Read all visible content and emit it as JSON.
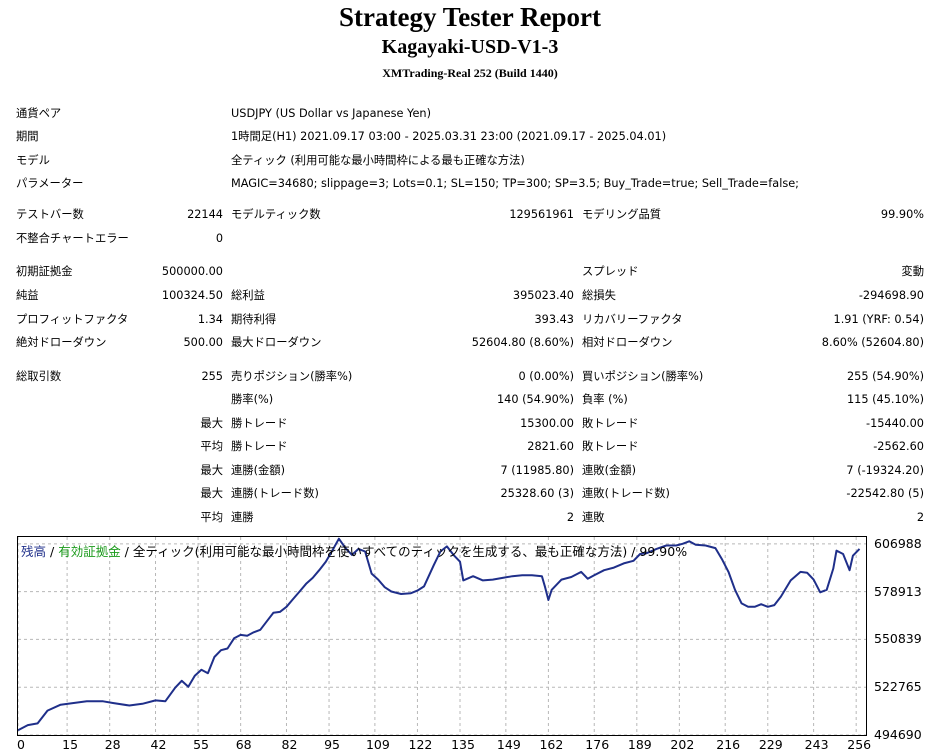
{
  "header": {
    "title": "Strategy Tester Report",
    "ea": "Kagayaki-USD-V1-3",
    "server": "XMTrading-Real 252 (Build 1440)"
  },
  "info": [
    {
      "label": "通貨ペア",
      "value": "USDJPY (US Dollar vs Japanese Yen)"
    },
    {
      "label": "期間",
      "value": "1時間足(H1) 2021.09.17 03:00 - 2025.03.31 23:00 (2021.09.17 - 2025.04.01)"
    },
    {
      "label": "モデル",
      "value": "全ティック (利用可能な最小時間枠による最も正確な方法)"
    },
    {
      "label": "パラメーター",
      "value": "MAGIC=34680; slippage=3; Lots=0.1; SL=150; TP=300; SP=3.5; Buy_Trade=true; Sell_Trade=false;"
    }
  ],
  "stats": {
    "bars_label": "テストバー数",
    "bars": "22144",
    "ticks_label": "モデルティック数",
    "ticks": "129561961",
    "quality_label": "モデリング品質",
    "quality": "99.90%",
    "mismatch_label": "不整合チャートエラー",
    "mismatch": "0",
    "deposit_label": "初期証拠金",
    "deposit": "500000.00",
    "spread_label": "スプレッド",
    "spread": "変動",
    "net_label": "純益",
    "net": "100324.50",
    "gross_profit_label": "総利益",
    "gross_profit": "395023.40",
    "gross_loss_label": "総損失",
    "gross_loss": "-294698.90",
    "pf_label": "プロフィットファクタ",
    "pf": "1.34",
    "expected_label": "期待利得",
    "expected": "393.43",
    "recovery_label": "リカバリーファクタ",
    "recovery": "1.91 (YRF: 0.54)",
    "abs_dd_label": "絶対ドローダウン",
    "abs_dd": "500.00",
    "max_dd_label": "最大ドローダウン",
    "max_dd": "52604.80 (8.60%)",
    "rel_dd_label": "相対ドローダウン",
    "rel_dd": "8.60% (52604.80)",
    "trades_label": "総取引数",
    "trades": "255",
    "short_label": "売りポジション(勝率%)",
    "short": "0 (0.00%)",
    "long_label": "買いポジション(勝率%)",
    "long": "255 (54.90%)",
    "win_pct_label": "勝率(%)",
    "win_pct": "140 (54.90%)",
    "loss_pct_label": "負率 (%)",
    "loss_pct": "115 (45.10%)",
    "max_word": "最大",
    "avg_word": "平均",
    "largest_win_label": "勝トレード",
    "largest_win": "15300.00",
    "largest_loss_label": "敗トレード",
    "largest_loss": "-15440.00",
    "avg_win_label": "勝トレード",
    "avg_win": "2821.60",
    "avg_loss_label": "敗トレード",
    "avg_loss": "-2562.60",
    "max_consec_win_label": "連勝(金額)",
    "max_consec_win": "7 (11985.80)",
    "max_consec_loss_label": "連敗(金額)",
    "max_consec_loss": "7 (-19324.20)",
    "max_consec_profit_label": "連勝(トレード数)",
    "max_consec_profit": "25328.60 (3)",
    "max_consec_lossamt_label": "連敗(トレード数)",
    "max_consec_lossamt": "-22542.80 (5)",
    "avg_consec_win_label": "連勝",
    "avg_consec_win": "2",
    "avg_consec_loss_label": "連敗",
    "avg_consec_loss": "2"
  },
  "legend": {
    "balance": "残高",
    "sep1": " / ",
    "equity": "有効証拠金",
    "sep2": " / ",
    "rest": "全ティック(利用可能な最小時間枠を使いすべてのティックを生成する、最も正確な方法) / 99.90%"
  },
  "colors": {
    "balance": "#1f2f8a",
    "equity": "#1b9a1b",
    "grid": "#b8b8b8"
  },
  "chart_data": {
    "type": "line",
    "series": [
      {
        "name": "残高",
        "values": [
          [
            0,
            497500
          ],
          [
            3,
            500500
          ],
          [
            6,
            501500
          ],
          [
            9,
            509000
          ],
          [
            13,
            512500
          ],
          [
            17,
            513500
          ],
          [
            21,
            514500
          ],
          [
            26,
            514500
          ],
          [
            29,
            513500
          ],
          [
            34,
            512000
          ],
          [
            38,
            513000
          ],
          [
            42,
            515000
          ],
          [
            45,
            514500
          ],
          [
            48,
            522500
          ],
          [
            50,
            526500
          ],
          [
            52,
            523000
          ],
          [
            54,
            529500
          ],
          [
            56,
            533000
          ],
          [
            58,
            531000
          ],
          [
            60,
            540500
          ],
          [
            62,
            544500
          ],
          [
            64,
            545500
          ],
          [
            66,
            551500
          ],
          [
            68,
            553500
          ],
          [
            70,
            553000
          ],
          [
            72,
            555000
          ],
          [
            74,
            556500
          ],
          [
            76,
            561500
          ],
          [
            78,
            566500
          ],
          [
            80,
            567000
          ],
          [
            82,
            570000
          ],
          [
            84,
            574500
          ],
          [
            86,
            579000
          ],
          [
            88,
            583500
          ],
          [
            90,
            587000
          ],
          [
            92,
            591500
          ],
          [
            94,
            596500
          ],
          [
            96,
            603000
          ],
          [
            98,
            610000
          ],
          [
            100,
            604500
          ],
          [
            102,
            600500
          ],
          [
            104,
            604000
          ],
          [
            106,
            602500
          ],
          [
            108,
            589500
          ],
          [
            110,
            586000
          ],
          [
            112,
            581500
          ],
          [
            114,
            579000
          ],
          [
            117,
            577500
          ],
          [
            120,
            578000
          ],
          [
            122,
            579500
          ],
          [
            124,
            582000
          ],
          [
            127,
            594500
          ],
          [
            129,
            602500
          ],
          [
            131,
            605500
          ],
          [
            133,
            600500
          ],
          [
            135,
            596500
          ],
          [
            136,
            585500
          ],
          [
            139,
            588000
          ],
          [
            142,
            585500
          ],
          [
            145,
            586000
          ],
          [
            148,
            587000
          ],
          [
            151,
            588000
          ],
          [
            154,
            588500
          ],
          [
            157,
            588500
          ],
          [
            160,
            588000
          ],
          [
            161,
            581500
          ],
          [
            162,
            574000
          ],
          [
            163,
            580000
          ],
          [
            166,
            586000
          ],
          [
            169,
            587500
          ],
          [
            172,
            590500
          ],
          [
            174,
            586500
          ],
          [
            176,
            588500
          ],
          [
            179,
            591500
          ],
          [
            182,
            593000
          ],
          [
            185,
            595500
          ],
          [
            188,
            597000
          ],
          [
            190,
            601000
          ],
          [
            192,
            601500
          ],
          [
            195,
            604000
          ],
          [
            198,
            606000
          ],
          [
            201,
            606000
          ],
          [
            203,
            607000
          ],
          [
            205,
            608500
          ],
          [
            207,
            606500
          ],
          [
            210,
            606000
          ],
          [
            213,
            604500
          ],
          [
            215,
            598000
          ],
          [
            217,
            590500
          ],
          [
            219,
            580000
          ],
          [
            221,
            572000
          ],
          [
            223,
            570000
          ],
          [
            225,
            570000
          ],
          [
            227,
            571500
          ],
          [
            229,
            570000
          ],
          [
            231,
            571000
          ],
          [
            233,
            576000
          ],
          [
            236,
            585500
          ],
          [
            239,
            590500
          ],
          [
            241,
            590000
          ],
          [
            243,
            586000
          ],
          [
            245,
            578500
          ],
          [
            247,
            580000
          ],
          [
            249,
            592500
          ],
          [
            250,
            603000
          ],
          [
            252,
            601000
          ],
          [
            254,
            591500
          ],
          [
            255,
            600000
          ],
          [
            257,
            604000
          ]
        ]
      }
    ],
    "x_ticks": [
      0,
      15,
      28,
      42,
      55,
      68,
      82,
      95,
      109,
      122,
      135,
      149,
      162,
      176,
      189,
      202,
      216,
      229,
      243,
      256
    ],
    "y_ticks": [
      494690,
      522765,
      550839,
      578913,
      606988
    ],
    "x_range": [
      0,
      259
    ],
    "y_range": [
      494690,
      611000
    ],
    "grid": true,
    "y_axis_position": "right"
  }
}
